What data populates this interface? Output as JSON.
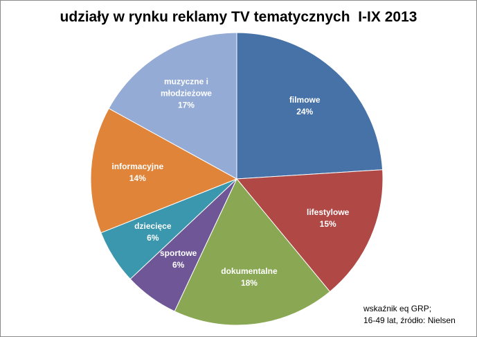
{
  "chart_data": {
    "type": "pie",
    "title": "udziały w rynku reklamy TV tematycznych  I-IX 2013",
    "categories": [
      "filmowe",
      "lifestylowe",
      "dokumentalne",
      "sportowe",
      "dziecięce",
      "informacyjne",
      "muzyczne i młodzieżowe"
    ],
    "values": [
      24,
      15,
      18,
      6,
      6,
      14,
      17
    ],
    "value_labels": [
      "24%",
      "15%",
      "18%",
      "6%",
      "6%",
      "14%",
      "17%"
    ],
    "colors": [
      "#4672a8",
      "#b04846",
      "#8aa853",
      "#6f5797",
      "#3b97ae",
      "#e0843a",
      "#94abd5"
    ],
    "note": [
      "wskaźnik eq GRP;",
      "16-49 lat, źródło: Nielsen"
    ]
  }
}
